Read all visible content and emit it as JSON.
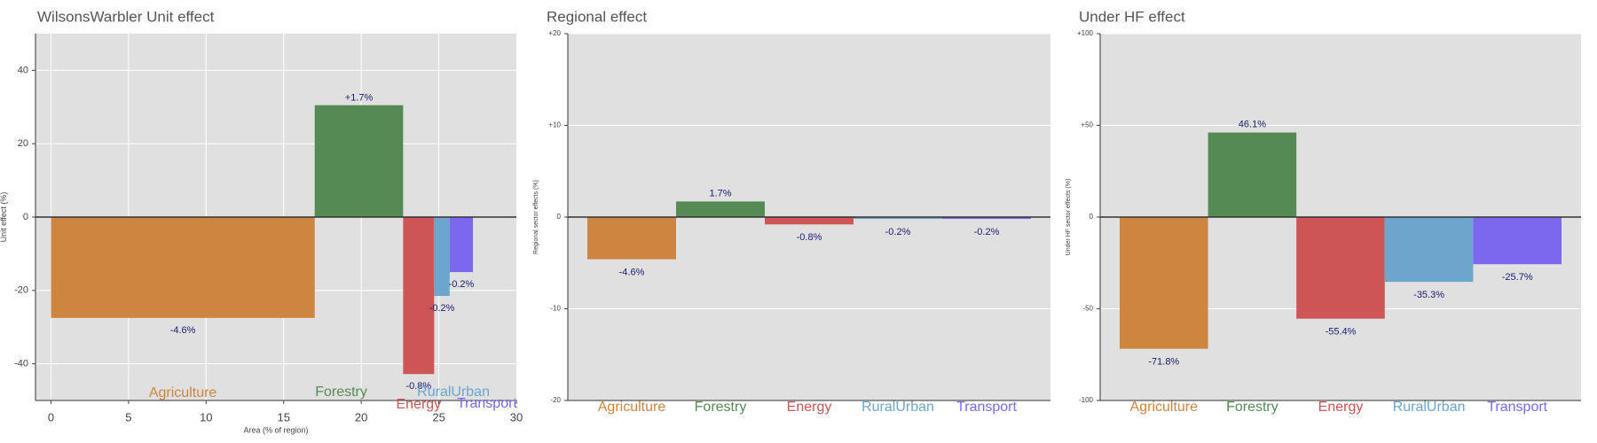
{
  "colors": {
    "Agriculture": "#CD853F",
    "Forestry": "#548B54",
    "Energy": "#CD5555",
    "RuralUrban": "#6CA6CD",
    "Transport": "#7B68EE",
    "panel_bg": "#e0e0e0",
    "grid": "#ffffff",
    "zero_line": "#333333"
  },
  "chart_data": [
    {
      "type": "bar",
      "title": "WilsonsWarbler Unit effect",
      "xlabel": "Area (% of region)",
      "ylabel": "Unit effect (%)",
      "xlim": [
        -1,
        30
      ],
      "ylim": [
        -50,
        50
      ],
      "xticks": [
        "0",
        "5",
        "10",
        "15",
        "20",
        "25",
        "30"
      ],
      "yticks": [
        "-40",
        "-20",
        "0",
        "20",
        "40"
      ],
      "bars": [
        {
          "category": "Agriculture",
          "x_start": 0,
          "x_end": 17,
          "value": -27.5,
          "label": "-4.6%"
        },
        {
          "category": "Forestry",
          "x_start": 17,
          "x_end": 22.7,
          "value": 30.5,
          "label": "+1.7%"
        },
        {
          "category": "Energy",
          "x_start": 22.7,
          "x_end": 24.7,
          "value": -42.8,
          "label": "-0.8%"
        },
        {
          "category": "RuralUrban",
          "x_start": 24.7,
          "x_end": 25.7,
          "value": -21.5,
          "label": "-0.2%"
        },
        {
          "category": "Transport",
          "x_start": 25.7,
          "x_end": 27.2,
          "value": -15,
          "label": "-0.2%"
        }
      ]
    },
    {
      "type": "bar",
      "title": "Regional effect",
      "ylabel": "Regional sector effects (%)",
      "ylim": [
        -20,
        20
      ],
      "yticks": [
        "-20",
        "-10",
        "0",
        "+10",
        "+20"
      ],
      "categories": [
        "Agriculture",
        "Forestry",
        "Energy",
        "RuralUrban",
        "Transport"
      ],
      "values": [
        -4.6,
        1.7,
        -0.8,
        -0.2,
        -0.2
      ],
      "labels": [
        "-4.6%",
        "1.7%",
        "-0.8%",
        "-0.2%",
        "-0.2%"
      ]
    },
    {
      "type": "bar",
      "title": "Under HF effect",
      "ylabel": "Under HF sector effects (%)",
      "ylim": [
        -100,
        100
      ],
      "yticks": [
        "-100",
        "-50",
        "0",
        "+50",
        "+100"
      ],
      "categories": [
        "Agriculture",
        "Forestry",
        "Energy",
        "RuralUrban",
        "Transport"
      ],
      "values": [
        -71.8,
        46.1,
        -55.4,
        -35.3,
        -25.7
      ],
      "labels": [
        "-71.8%",
        "46.1%",
        "-55.4%",
        "-35.3%",
        "-25.7%"
      ]
    }
  ]
}
